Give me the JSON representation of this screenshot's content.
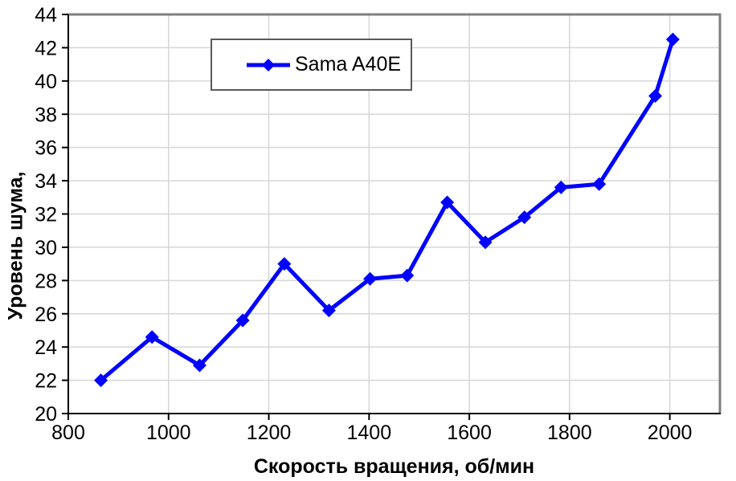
{
  "chart_data": {
    "type": "line",
    "title": "",
    "xlabel": "Скорость вращения, об/мин",
    "ylabel": "Уровень шума,",
    "xlim": [
      800,
      2100
    ],
    "ylim": [
      20,
      44
    ],
    "x_ticks": [
      800,
      1000,
      1200,
      1400,
      1600,
      1800,
      2000
    ],
    "y_ticks": [
      20,
      22,
      24,
      26,
      28,
      30,
      32,
      34,
      36,
      38,
      40,
      42,
      44
    ],
    "grid": true,
    "legend": {
      "position": "top-center",
      "label": "Sama A40E"
    },
    "colors": {
      "line": "#0000ff",
      "grid": "#d6d6d6",
      "axis": "#000000",
      "plot_border": "#7f7f7f",
      "legend_border": "#595959",
      "background": "#ffffff"
    },
    "series": [
      {
        "name": "Sama A40E",
        "marker": "diamond",
        "color": "#0000ff",
        "x": [
          865,
          967,
          1062,
          1148,
          1231,
          1320,
          1402,
          1476,
          1556,
          1632,
          1710,
          1783,
          1859,
          1971,
          2006
        ],
        "y": [
          22.0,
          24.6,
          22.9,
          25.6,
          29.0,
          26.2,
          28.1,
          28.3,
          32.7,
          30.3,
          31.8,
          33.6,
          33.8,
          39.1,
          42.5
        ]
      }
    ]
  }
}
